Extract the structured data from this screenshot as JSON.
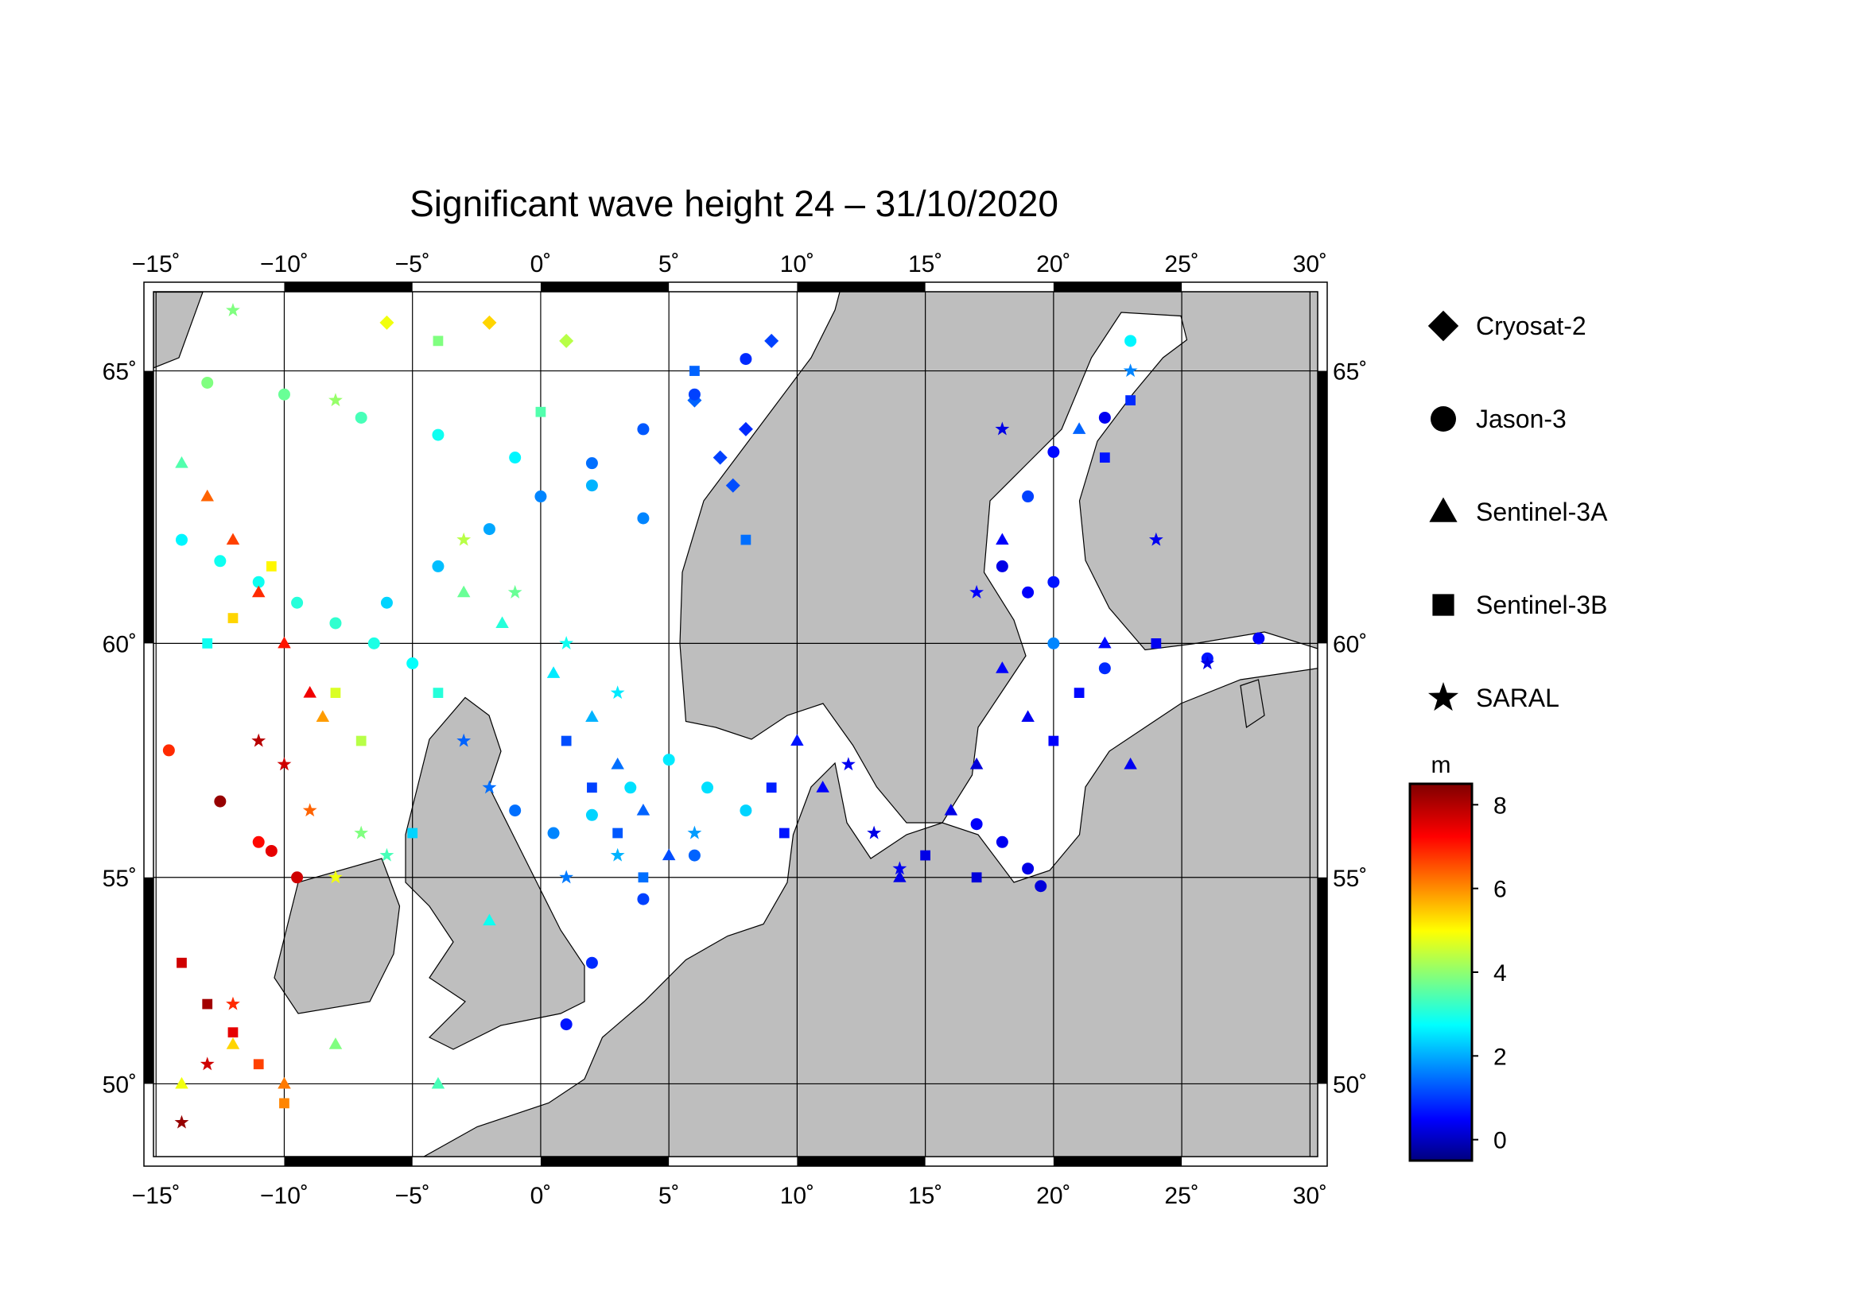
{
  "map": {
    "title": "Significant wave height 24 – 31/10/2020",
    "xlim": [
      -15.1,
      30.3
    ],
    "ylim": [
      48.1,
      66.3
    ],
    "xticks": [
      {
        "value": -15,
        "label": "−15˚"
      },
      {
        "value": -10,
        "label": "−10˚"
      },
      {
        "value": -5,
        "label": "−5˚"
      },
      {
        "value": 0,
        "label": "0˚"
      },
      {
        "value": 5,
        "label": "5˚"
      },
      {
        "value": 10,
        "label": "10˚"
      },
      {
        "value": 15,
        "label": "15˚"
      },
      {
        "value": 20,
        "label": "20˚"
      },
      {
        "value": 25,
        "label": "25˚"
      },
      {
        "value": 30,
        "label": "30˚"
      }
    ],
    "yticks": [
      {
        "value": 50,
        "label": "50˚"
      },
      {
        "value": 55,
        "label": "55˚"
      },
      {
        "value": 60,
        "label": "60˚"
      },
      {
        "value": 65,
        "label": "65˚"
      }
    ],
    "colorbar": {
      "label": "m",
      "clim": [
        -0.5,
        8.5
      ],
      "ticks": [
        0,
        2,
        4,
        6,
        8
      ]
    },
    "satellites": [
      {
        "name": "Cryosat-2",
        "shape": "diamond",
        "points": [
          [
            7,
            63.5,
            1.2
          ],
          [
            7.5,
            63,
            1.3
          ],
          [
            8,
            64,
            1.0
          ],
          [
            6,
            64.5,
            1.5
          ],
          [
            9,
            65.5,
            1.2
          ],
          [
            -6,
            65.8,
            5
          ],
          [
            -2,
            65.8,
            5.5
          ],
          [
            1,
            65.5,
            4.5
          ]
        ]
      },
      {
        "name": "Jason-3",
        "shape": "circle",
        "points": [
          [
            -14,
            62,
            2.8
          ],
          [
            -12.5,
            61.6,
            3
          ],
          [
            -11,
            61.2,
            3
          ],
          [
            -9.5,
            60.8,
            3.2
          ],
          [
            -8,
            60.4,
            3.3
          ],
          [
            -6.5,
            60,
            3.1
          ],
          [
            -5,
            59.6,
            2.9
          ],
          [
            -6,
            60.8,
            2.5
          ],
          [
            -4,
            61.5,
            2.3
          ],
          [
            -2,
            62.2,
            2.1
          ],
          [
            0,
            62.8,
            1.8
          ],
          [
            2,
            63.4,
            1.6
          ],
          [
            4,
            64,
            1.4
          ],
          [
            6,
            64.6,
            1.2
          ],
          [
            8,
            65.2,
            1.0
          ],
          [
            -13,
            64.8,
            4
          ],
          [
            -10,
            64.6,
            3.8
          ],
          [
            -7,
            64.2,
            3.5
          ],
          [
            -4,
            63.9,
            3
          ],
          [
            -1,
            63.5,
            2.8
          ],
          [
            2,
            63,
            2.2
          ],
          [
            4,
            62.4,
            1.8
          ],
          [
            -1,
            56.5,
            1.6
          ],
          [
            0.5,
            56,
            1.8
          ],
          [
            2,
            56.4,
            2.5
          ],
          [
            3.5,
            57,
            2.6
          ],
          [
            5,
            57.6,
            2.7
          ],
          [
            6.5,
            57,
            2.6
          ],
          [
            8,
            56.5,
            2.5
          ],
          [
            6,
            55.5,
            1.5
          ],
          [
            4,
            54.5,
            1.2
          ],
          [
            2,
            53,
            1
          ],
          [
            1,
            51.5,
            0.8
          ],
          [
            -11,
            55.8,
            7.3
          ],
          [
            -10.5,
            55.6,
            7.6
          ],
          [
            -9.5,
            55,
            7.8
          ],
          [
            -12.5,
            56.7,
            8.3
          ],
          [
            -14.5,
            57.8,
            7
          ],
          [
            17,
            56.2,
            0.6
          ],
          [
            18,
            55.8,
            0.5
          ],
          [
            19,
            55.2,
            0.4
          ],
          [
            19.5,
            54.8,
            0.3
          ],
          [
            18,
            61.5,
            0.4
          ],
          [
            19,
            61,
            0.6
          ],
          [
            20,
            61.2,
            0.8
          ],
          [
            19,
            62.8,
            1.2
          ],
          [
            20,
            63.6,
            0.7
          ],
          [
            22,
            64.2,
            0.5
          ],
          [
            23,
            65.5,
            2.8
          ],
          [
            28,
            60.1,
            0.6
          ],
          [
            26,
            59.7,
            0.8
          ],
          [
            22,
            59.5,
            1
          ],
          [
            20,
            60,
            1.8
          ]
        ]
      },
      {
        "name": "Sentinel-3A",
        "shape": "triangle",
        "points": [
          [
            -14,
            63.4,
            3.6
          ],
          [
            -13,
            62.8,
            6.5
          ],
          [
            -12,
            62,
            6.8
          ],
          [
            -11,
            61,
            7
          ],
          [
            -10,
            60,
            7.2
          ],
          [
            -9,
            59,
            7.5
          ],
          [
            -8.5,
            58.5,
            6
          ],
          [
            -3,
            61,
            3.8
          ],
          [
            -1.5,
            60.4,
            3.2
          ],
          [
            0.5,
            59.4,
            2.7
          ],
          [
            2,
            58.5,
            2.2
          ],
          [
            3,
            57.5,
            1.6
          ],
          [
            4,
            56.5,
            1.5
          ],
          [
            5,
            55.5,
            1.3
          ],
          [
            -14,
            50,
            5
          ],
          [
            -12,
            51,
            5.5
          ],
          [
            -10,
            50,
            6.3
          ],
          [
            -8,
            51,
            4
          ],
          [
            -4,
            50,
            3.5
          ],
          [
            -2,
            54,
            3
          ],
          [
            18,
            59.5,
            0.6
          ],
          [
            19,
            58.5,
            0.5
          ],
          [
            17,
            57.5,
            0.3
          ],
          [
            16,
            56.5,
            0.4
          ],
          [
            22,
            60,
            0.7
          ],
          [
            23,
            57.5,
            0.5
          ],
          [
            10,
            58,
            0.8
          ],
          [
            11,
            57,
            0.6
          ],
          [
            14,
            55,
            0.4
          ],
          [
            18,
            62,
            0.6
          ],
          [
            21,
            64,
            1.5
          ]
        ]
      },
      {
        "name": "Sentinel-3B",
        "shape": "square",
        "points": [
          [
            -14,
            53,
            7.8
          ],
          [
            -13,
            52,
            8.2
          ],
          [
            -12,
            51.3,
            7.6
          ],
          [
            -11,
            50.5,
            6.8
          ],
          [
            -10,
            49.5,
            6.2
          ],
          [
            -13,
            60,
            3
          ],
          [
            -12,
            60.5,
            5.5
          ],
          [
            -10.5,
            61.5,
            5.2
          ],
          [
            -8,
            59,
            4.8
          ],
          [
            -7,
            58,
            4.5
          ],
          [
            -4,
            59,
            3.2
          ],
          [
            -5,
            56,
            2.5
          ],
          [
            2,
            57,
            1.2
          ],
          [
            3,
            56,
            1.4
          ],
          [
            4,
            55,
            1.6
          ],
          [
            1,
            58,
            1.3
          ],
          [
            6,
            65,
            1.5
          ],
          [
            8,
            62,
            1.6
          ],
          [
            9,
            57,
            0.9
          ],
          [
            9.5,
            56,
            0.8
          ],
          [
            15,
            55.5,
            0.4
          ],
          [
            17,
            55,
            0.3
          ],
          [
            20,
            58,
            0.6
          ],
          [
            21,
            59,
            0.7
          ],
          [
            22,
            63.5,
            0.8
          ],
          [
            23,
            64.5,
            1
          ],
          [
            24,
            60,
            0.5
          ],
          [
            -4,
            65.5,
            4
          ],
          [
            0,
            64.3,
            3.6
          ]
        ]
      },
      {
        "name": "SARAL",
        "shape": "star",
        "points": [
          [
            -14,
            49,
            8.3
          ],
          [
            -13,
            50.5,
            7.8
          ],
          [
            -12,
            52,
            7
          ],
          [
            -10,
            57.5,
            7.8
          ],
          [
            -11,
            58,
            8
          ],
          [
            -9,
            56.5,
            6.5
          ],
          [
            -8,
            55,
            5
          ],
          [
            -7,
            56,
            4
          ],
          [
            -6,
            55.5,
            3.5
          ],
          [
            -3,
            58,
            1.5
          ],
          [
            -2,
            57,
            1.6
          ],
          [
            1,
            55,
            1.7
          ],
          [
            3,
            55.5,
            2.2
          ],
          [
            6,
            56,
            2
          ],
          [
            -3,
            62,
            4.5
          ],
          [
            -1,
            61,
            3.8
          ],
          [
            1,
            60,
            3
          ],
          [
            3,
            59,
            2.7
          ],
          [
            12,
            57.5,
            0.5
          ],
          [
            13,
            56,
            0.4
          ],
          [
            14,
            55.2,
            0.5
          ],
          [
            17,
            61,
            0.6
          ],
          [
            18,
            64,
            0.4
          ],
          [
            23,
            65,
            1.8
          ],
          [
            24,
            62,
            0.5
          ],
          [
            26,
            59.6,
            0.4
          ],
          [
            -12,
            66,
            4
          ],
          [
            -8,
            64.5,
            4.2
          ]
        ]
      }
    ]
  }
}
